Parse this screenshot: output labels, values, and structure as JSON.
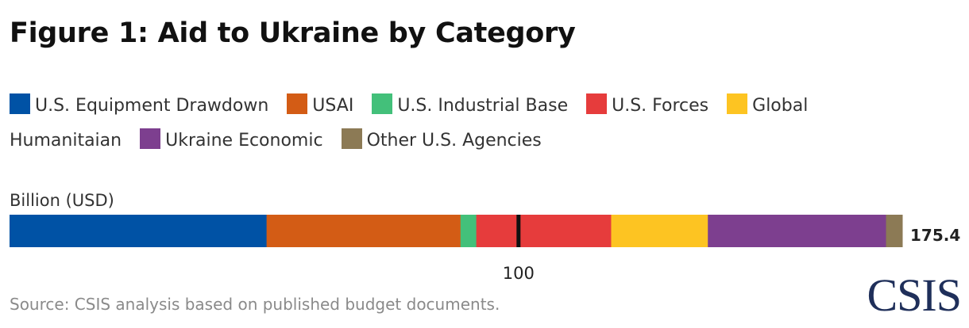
{
  "title": "Figure 1: Aid to Ukraine by Category",
  "unit_label": "Billion (USD)",
  "source": "Source: CSIS analysis based on published budget documents.",
  "logo_text": "CSIS",
  "chart_data": {
    "type": "bar",
    "orientation": "horizontal-stacked",
    "title": "Figure 1: Aid to Ukraine by Category",
    "ylabel": "Billion (USD)",
    "xlim": [
      0,
      175.4
    ],
    "grid": false,
    "legend_position": "top",
    "tick_labels": [
      "100"
    ],
    "ticks": [
      100
    ],
    "total": 175.4,
    "total_label": "175.4",
    "series": [
      {
        "name": "U.S. Equipment Drawdown",
        "value": 50.5,
        "color": "#0052a5"
      },
      {
        "name": "USAI",
        "value": 38.1,
        "color": "#d35c15"
      },
      {
        "name": "U.S. Industrial Base",
        "value": 3.1,
        "color": "#43c07a"
      },
      {
        "name": "U.S. Forces",
        "value": 26.5,
        "color": "#e63c3c"
      },
      {
        "name": "Global Humanitaian",
        "value": 19.0,
        "color": "#fdc422"
      },
      {
        "name": "Ukraine Economic",
        "value": 35.0,
        "color": "#7d3f8f"
      },
      {
        "name": "Other U.S. Agencies",
        "value": 3.2,
        "color": "#8c7a55"
      }
    ]
  }
}
